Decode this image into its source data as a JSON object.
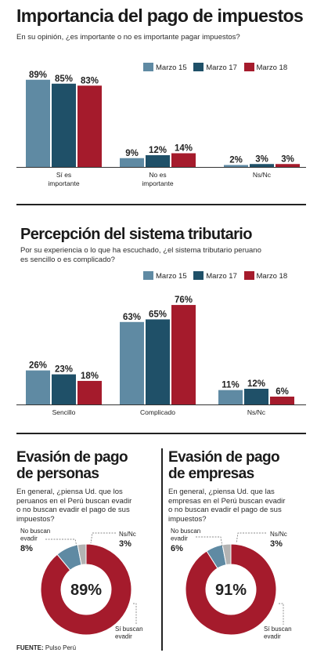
{
  "colors": {
    "s1": "#5f8aa3",
    "s2": "#1f5068",
    "s3": "#a51b2c",
    "gray": "#b3b3b3"
  },
  "source": {
    "label": "FUENTE:",
    "text": " Pulso Perú"
  },
  "chart_data": [
    {
      "type": "bar",
      "title": "Importancia del pago de impuestos",
      "subtitle": "En su opinión, ¿es importante o no es importante pagar impuestos?",
      "categories": [
        [
          "Sí es",
          "importante"
        ],
        [
          "No es",
          "importante"
        ],
        [
          "Ns/Nc"
        ]
      ],
      "series": [
        {
          "name": "Marzo 15",
          "values": [
            89,
            9,
            2
          ]
        },
        {
          "name": "Marzo 17",
          "values": [
            85,
            12,
            3
          ]
        },
        {
          "name": "Marzo 18",
          "values": [
            83,
            14,
            3
          ]
        }
      ],
      "legend": "top-right",
      "ylim": [
        0,
        100
      ]
    },
    {
      "type": "bar",
      "title": "Percepción del sistema tributario",
      "subtitle": [
        "Por su experiencia o lo que ha escuchado, ¿el sistema tributario peruano",
        "es sencillo o es complicado?"
      ],
      "categories": [
        [
          "Sencillo"
        ],
        [
          "Complicado"
        ],
        [
          "Ns/Nc"
        ]
      ],
      "series": [
        {
          "name": "Marzo 15",
          "values": [
            26,
            63,
            11
          ]
        },
        {
          "name": "Marzo 17",
          "values": [
            23,
            65,
            12
          ]
        },
        {
          "name": "Marzo 18",
          "values": [
            18,
            76,
            6
          ]
        }
      ],
      "legend": "top-right",
      "ylim": [
        0,
        100
      ]
    },
    {
      "type": "pie",
      "title": [
        "Evasión de pago",
        "de personas"
      ],
      "subtitle": [
        "En general, ¿piensa Ud. que los",
        "peruanos en el Perú buscan evadir",
        "o no buscan evadir el pago de sus",
        "impuestos?"
      ],
      "center_label": "89%",
      "slices": [
        {
          "label": [
            "Sí buscan",
            "evadir"
          ],
          "value": 89
        },
        {
          "label": [
            "No buscan",
            "evadir"
          ],
          "value": 8
        },
        {
          "label": [
            "Ns/Nc"
          ],
          "value": 3
        }
      ]
    },
    {
      "type": "pie",
      "title": [
        "Evasión de pago",
        "de empresas"
      ],
      "subtitle": [
        "En general, ¿piensa Ud. que las",
        "empresas en el Perú buscan evadir",
        "o no buscan evadir el pago de sus",
        "impuestos?"
      ],
      "center_label": "91%",
      "slices": [
        {
          "label": [
            "Sí buscan",
            "evadir"
          ],
          "value": 91
        },
        {
          "label": [
            "No buscan",
            "evadir"
          ],
          "value": 6
        },
        {
          "label": [
            "Ns/Nc"
          ],
          "value": 3
        }
      ]
    }
  ]
}
